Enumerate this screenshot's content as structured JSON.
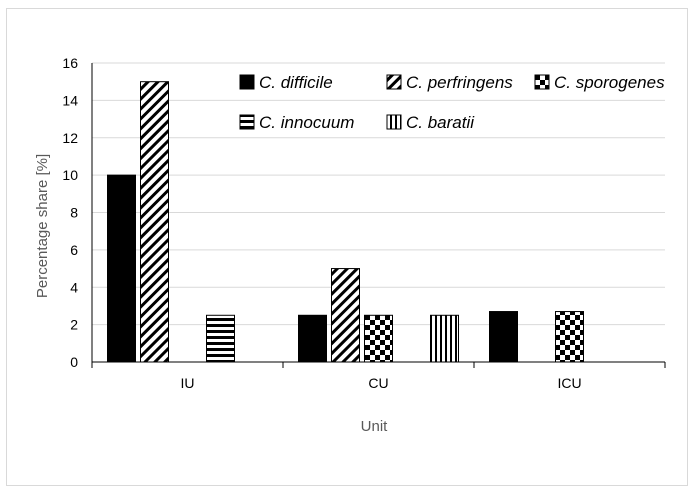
{
  "chart_data": {
    "type": "bar",
    "xlabel": "Unit",
    "ylabel": "Percentage share [%]",
    "ylim": [
      0,
      16
    ],
    "ytick_step": 2,
    "grid": true,
    "categories": [
      "IU",
      "CU",
      "ICU"
    ],
    "series": [
      {
        "name": "C. difficile",
        "pattern": "solid",
        "values": [
          10,
          2.5,
          2.7
        ]
      },
      {
        "name": "C. perfringens",
        "pattern": "diagonal",
        "values": [
          15,
          5,
          null
        ]
      },
      {
        "name": "C. sporogenes",
        "pattern": "checker",
        "values": [
          null,
          2.5,
          2.7
        ]
      },
      {
        "name": "C. innocuum",
        "pattern": "horizontal",
        "values": [
          2.5,
          null,
          null
        ]
      },
      {
        "name": "C. baratii",
        "pattern": "vertical",
        "values": [
          null,
          2.5,
          null
        ]
      }
    ],
    "legend_position": "top-right, inside plot"
  },
  "colors": {
    "bar_fill": "#000000",
    "bar_stroke": "#000000",
    "grid": "#d9d9d9",
    "axis": "#000000",
    "axis_title": "#595959"
  }
}
